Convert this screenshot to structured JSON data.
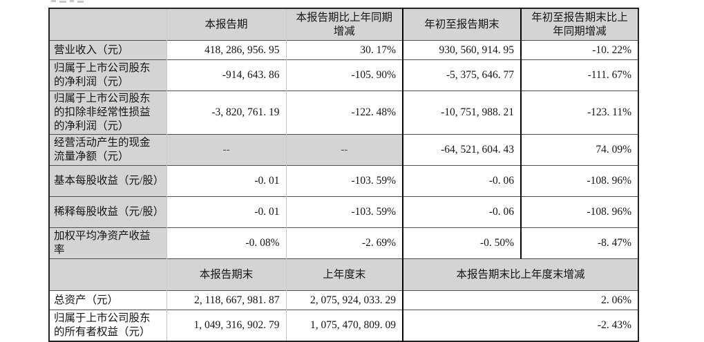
{
  "table1": {
    "col_headers": [
      "",
      "本报告期",
      "本报告期比上年同期增减",
      "年初至报告期末",
      "年初至报告期末比上年同期增减"
    ],
    "rows": [
      {
        "label": "营业收入（元）",
        "values": [
          "418, 286, 956. 95",
          "30. 17%",
          "930, 560, 914. 95",
          "-10. 22%"
        ]
      },
      {
        "label": "归属于上市公司股东的净利润（元）",
        "values": [
          "-914, 643. 86",
          "-105. 90%",
          "-5, 375, 646. 77",
          "-111. 67%"
        ]
      },
      {
        "label": "归属于上市公司股东的扣除非经常性损益的净利润（元）",
        "values": [
          "-3, 820, 761. 19",
          "-122. 48%",
          "-10, 751, 988. 21",
          "-123. 11%"
        ]
      },
      {
        "label": "经营活动产生的现金流量净额（元）",
        "values": [
          "--",
          "--",
          "-64, 521, 604. 43",
          "74. 09%"
        ]
      },
      {
        "label": "基本每股收益（元/股）",
        "values": [
          "-0. 01",
          "-103. 59%",
          "-0. 06",
          "-108. 96%"
        ]
      },
      {
        "label": "稀释每股收益（元/股）",
        "values": [
          "-0. 01",
          "-103. 59%",
          "-0. 06",
          "-108. 96%"
        ]
      },
      {
        "label": "加权平均净资产收益率",
        "values": [
          "-0. 08%",
          "-2. 69%",
          "-0. 50%",
          "-8. 47%"
        ]
      }
    ]
  },
  "table2": {
    "col_headers": [
      "",
      "本报告期末",
      "上年度末",
      "本报告期末比上年度末增减"
    ],
    "rows": [
      {
        "label": "总资产（元）",
        "values": [
          "2, 118, 667, 981. 87",
          "2, 075, 924, 033. 29",
          "2. 06%"
        ]
      },
      {
        "label": "归属于上市公司股东的所有者权益（元）",
        "values": [
          "1, 049, 316, 902. 79",
          "1, 075, 470, 809. 09",
          "-2. 43%"
        ]
      }
    ]
  }
}
